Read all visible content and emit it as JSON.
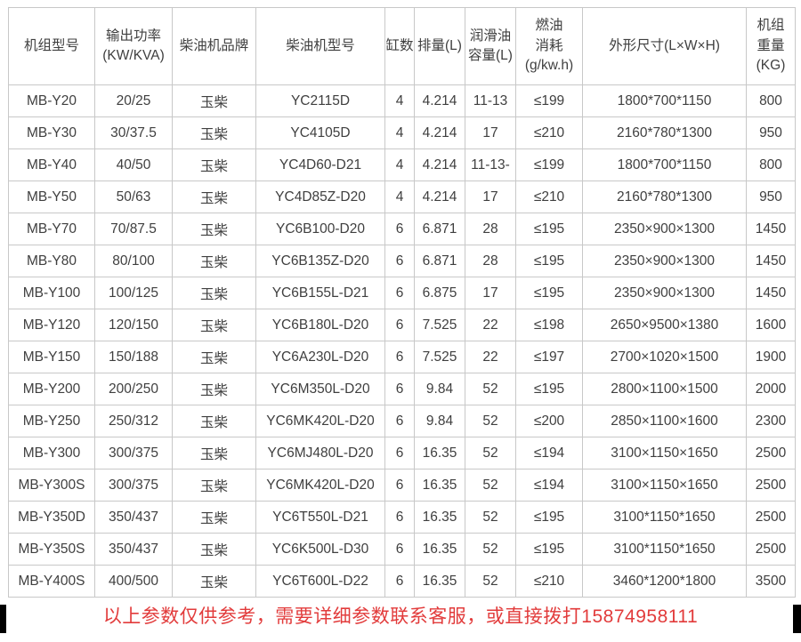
{
  "colors": {
    "text": "#3f3f3f",
    "border": "#c8c8c8",
    "notice": "#e23b3b",
    "corner": "#000000",
    "background": "#ffffff"
  },
  "table": {
    "columns": [
      {
        "key": "model",
        "label_lines": [
          "机组型号"
        ]
      },
      {
        "key": "power",
        "label_lines": [
          "输出功率",
          "(KW/KVA)"
        ]
      },
      {
        "key": "brand",
        "label_lines": [
          "柴油机品牌"
        ]
      },
      {
        "key": "engine",
        "label_lines": [
          "柴油机型号"
        ]
      },
      {
        "key": "cylinders",
        "label_lines": [
          "缸数"
        ]
      },
      {
        "key": "displacement",
        "label_lines": [
          "排量(L)"
        ]
      },
      {
        "key": "lube",
        "label_lines": [
          "润滑油",
          "容量(L)"
        ]
      },
      {
        "key": "fuel",
        "label_lines": [
          "燃油",
          "消耗",
          "(g/kw.h)"
        ]
      },
      {
        "key": "dimensions",
        "label_lines": [
          "外形尺寸(L×W×H)"
        ]
      },
      {
        "key": "weight",
        "label_lines": [
          "机组",
          "重量",
          "(KG)"
        ]
      }
    ],
    "rows": [
      {
        "model": "MB-Y20",
        "power": "20/25",
        "brand": "玉柴",
        "engine": "YC2115D",
        "cylinders": "4",
        "displacement": "4.214",
        "lube": "11-13",
        "fuel": "≤199",
        "dimensions": "1800*700*1150",
        "weight": "800"
      },
      {
        "model": "MB-Y30",
        "power": "30/37.5",
        "brand": "玉柴",
        "engine": "YC4105D",
        "cylinders": "4",
        "displacement": "4.214",
        "lube": "17",
        "fuel": "≤210",
        "dimensions": "2160*780*1300",
        "weight": "950"
      },
      {
        "model": "MB-Y40",
        "power": "40/50",
        "brand": "玉柴",
        "engine": "YC4D60-D21",
        "cylinders": "4",
        "displacement": "4.214",
        "lube": "11-13-",
        "fuel": "≤199",
        "dimensions": "1800*700*1150",
        "weight": "800"
      },
      {
        "model": "MB-Y50",
        "power": "50/63",
        "brand": "玉柴",
        "engine": "YC4D85Z-D20",
        "cylinders": "4",
        "displacement": "4.214",
        "lube": "17",
        "fuel": "≤210",
        "dimensions": "2160*780*1300",
        "weight": "950"
      },
      {
        "model": "MB-Y70",
        "power": "70/87.5",
        "brand": "玉柴",
        "engine": "YC6B100-D20",
        "cylinders": "6",
        "displacement": "6.871",
        "lube": "28",
        "fuel": "≤195",
        "dimensions": "2350×900×1300",
        "weight": "1450"
      },
      {
        "model": "MB-Y80",
        "power": "80/100",
        "brand": "玉柴",
        "engine": "YC6B135Z-D20",
        "cylinders": "6",
        "displacement": "6.871",
        "lube": "28",
        "fuel": "≤195",
        "dimensions": "2350×900×1300",
        "weight": "1450"
      },
      {
        "model": "MB-Y100",
        "power": "100/125",
        "brand": "玉柴",
        "engine": "YC6B155L-D21",
        "cylinders": "6",
        "displacement": "6.875",
        "lube": "17",
        "fuel": "≤195",
        "dimensions": "2350×900×1300",
        "weight": "1450"
      },
      {
        "model": "MB-Y120",
        "power": "120/150",
        "brand": "玉柴",
        "engine": "YC6B180L-D20",
        "cylinders": "6",
        "displacement": "7.525",
        "lube": "22",
        "fuel": "≤198",
        "dimensions": "2650×9500×1380",
        "weight": "1600"
      },
      {
        "model": "MB-Y150",
        "power": "150/188",
        "brand": "玉柴",
        "engine": "YC6A230L-D20",
        "cylinders": "6",
        "displacement": "7.525",
        "lube": "22",
        "fuel": "≤197",
        "dimensions": "2700×1020×1500",
        "weight": "1900"
      },
      {
        "model": "MB-Y200",
        "power": "200/250",
        "brand": "玉柴",
        "engine": "YC6M350L-D20",
        "cylinders": "6",
        "displacement": "9.84",
        "lube": "52",
        "fuel": "≤195",
        "dimensions": "2800×1100×1500",
        "weight": "2000"
      },
      {
        "model": "MB-Y250",
        "power": "250/312",
        "brand": "玉柴",
        "engine": "YC6MK420L-D20",
        "cylinders": "6",
        "displacement": "9.84",
        "lube": "52",
        "fuel": "≤200",
        "dimensions": "2850×1100×1600",
        "weight": "2300"
      },
      {
        "model": "MB-Y300",
        "power": "300/375",
        "brand": "玉柴",
        "engine": "YC6MJ480L-D20",
        "cylinders": "6",
        "displacement": "16.35",
        "lube": "52",
        "fuel": "≤194",
        "dimensions": "3100×1150×1650",
        "weight": "2500"
      },
      {
        "model": "MB-Y300S",
        "power": "300/375",
        "brand": "玉柴",
        "engine": "YC6MK420L-D20",
        "cylinders": "6",
        "displacement": "16.35",
        "lube": "52",
        "fuel": "≤194",
        "dimensions": "3100×1150×1650",
        "weight": "2500"
      },
      {
        "model": "MB-Y350D",
        "power": "350/437",
        "brand": "玉柴",
        "engine": "YC6T550L-D21",
        "cylinders": "6",
        "displacement": "16.35",
        "lube": "52",
        "fuel": "≤195",
        "dimensions": "3100*1150*1650",
        "weight": "2500"
      },
      {
        "model": "MB-Y350S",
        "power": "350/437",
        "brand": "玉柴",
        "engine": "YC6K500L-D30",
        "cylinders": "6",
        "displacement": "16.35",
        "lube": "52",
        "fuel": "≤195",
        "dimensions": "3100*1150*1650",
        "weight": "2500"
      },
      {
        "model": "MB-Y400S",
        "power": "400/500",
        "brand": "玉柴",
        "engine": "YC6T600L-D22",
        "cylinders": "6",
        "displacement": "16.35",
        "lube": "52",
        "fuel": "≤210",
        "dimensions": "3460*1200*1800",
        "weight": "3500"
      }
    ]
  },
  "footer": {
    "notice": "以上参数仅供参考，需要详细参数联系客服，或直接拨打15874958111"
  }
}
